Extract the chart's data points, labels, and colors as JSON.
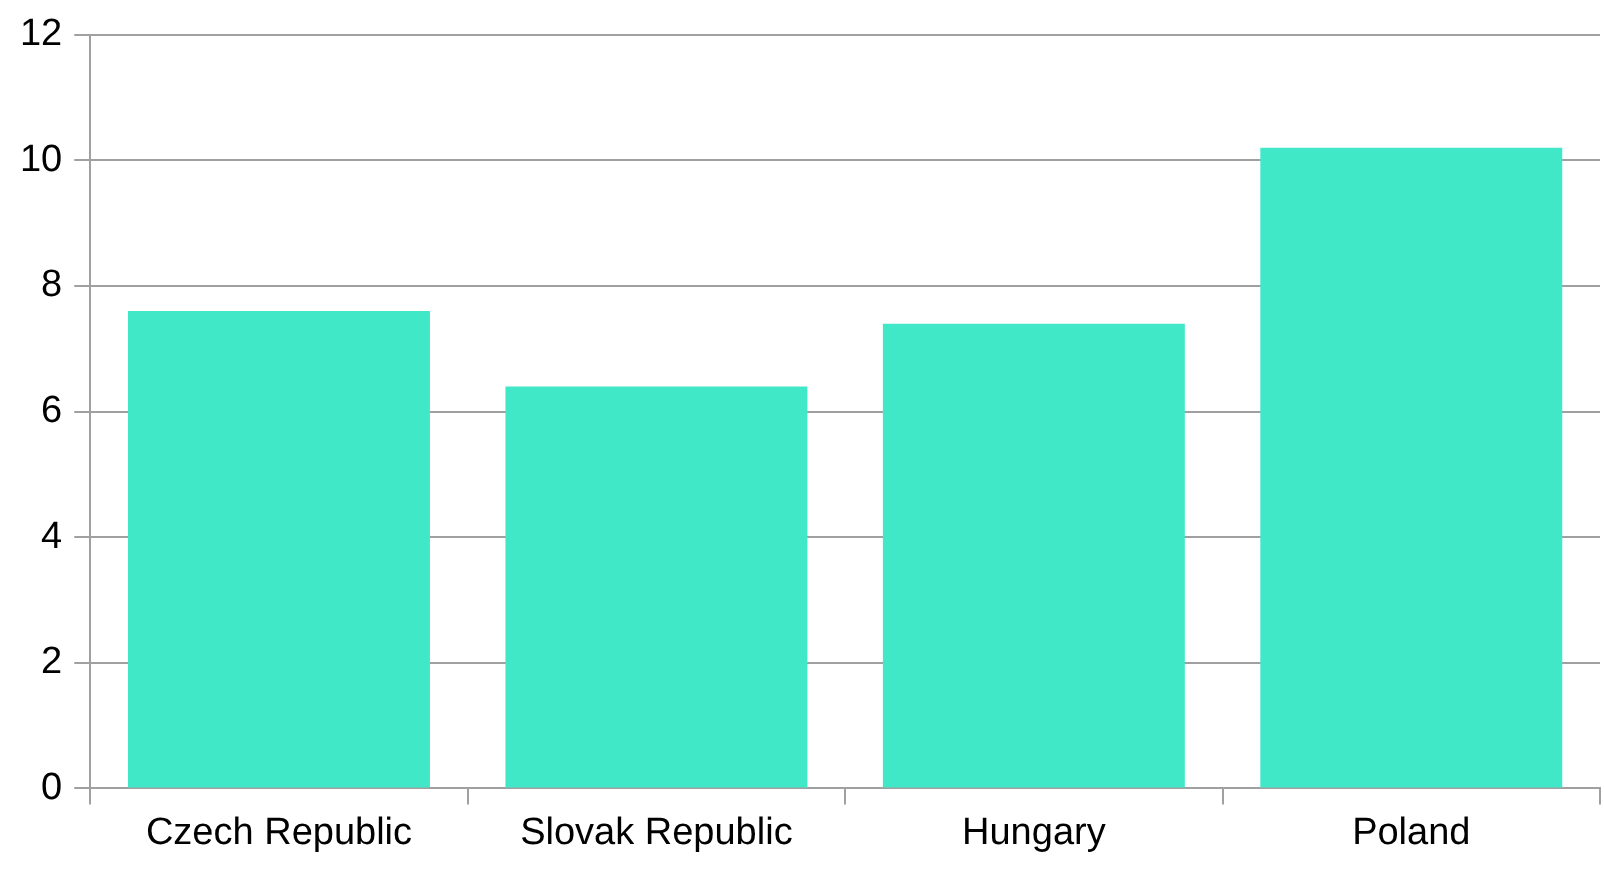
{
  "chart_data": {
    "type": "bar",
    "categories": [
      "Czech Republic",
      "Slovak Republic",
      "Hungary",
      "Poland"
    ],
    "values": [
      7.6,
      6.4,
      7.4,
      10.2
    ],
    "color": "#40e8c8",
    "ylim": [
      0,
      12
    ],
    "yticks": [
      0,
      2,
      4,
      6,
      8,
      10,
      12
    ],
    "grid": "y",
    "legend": false
  }
}
